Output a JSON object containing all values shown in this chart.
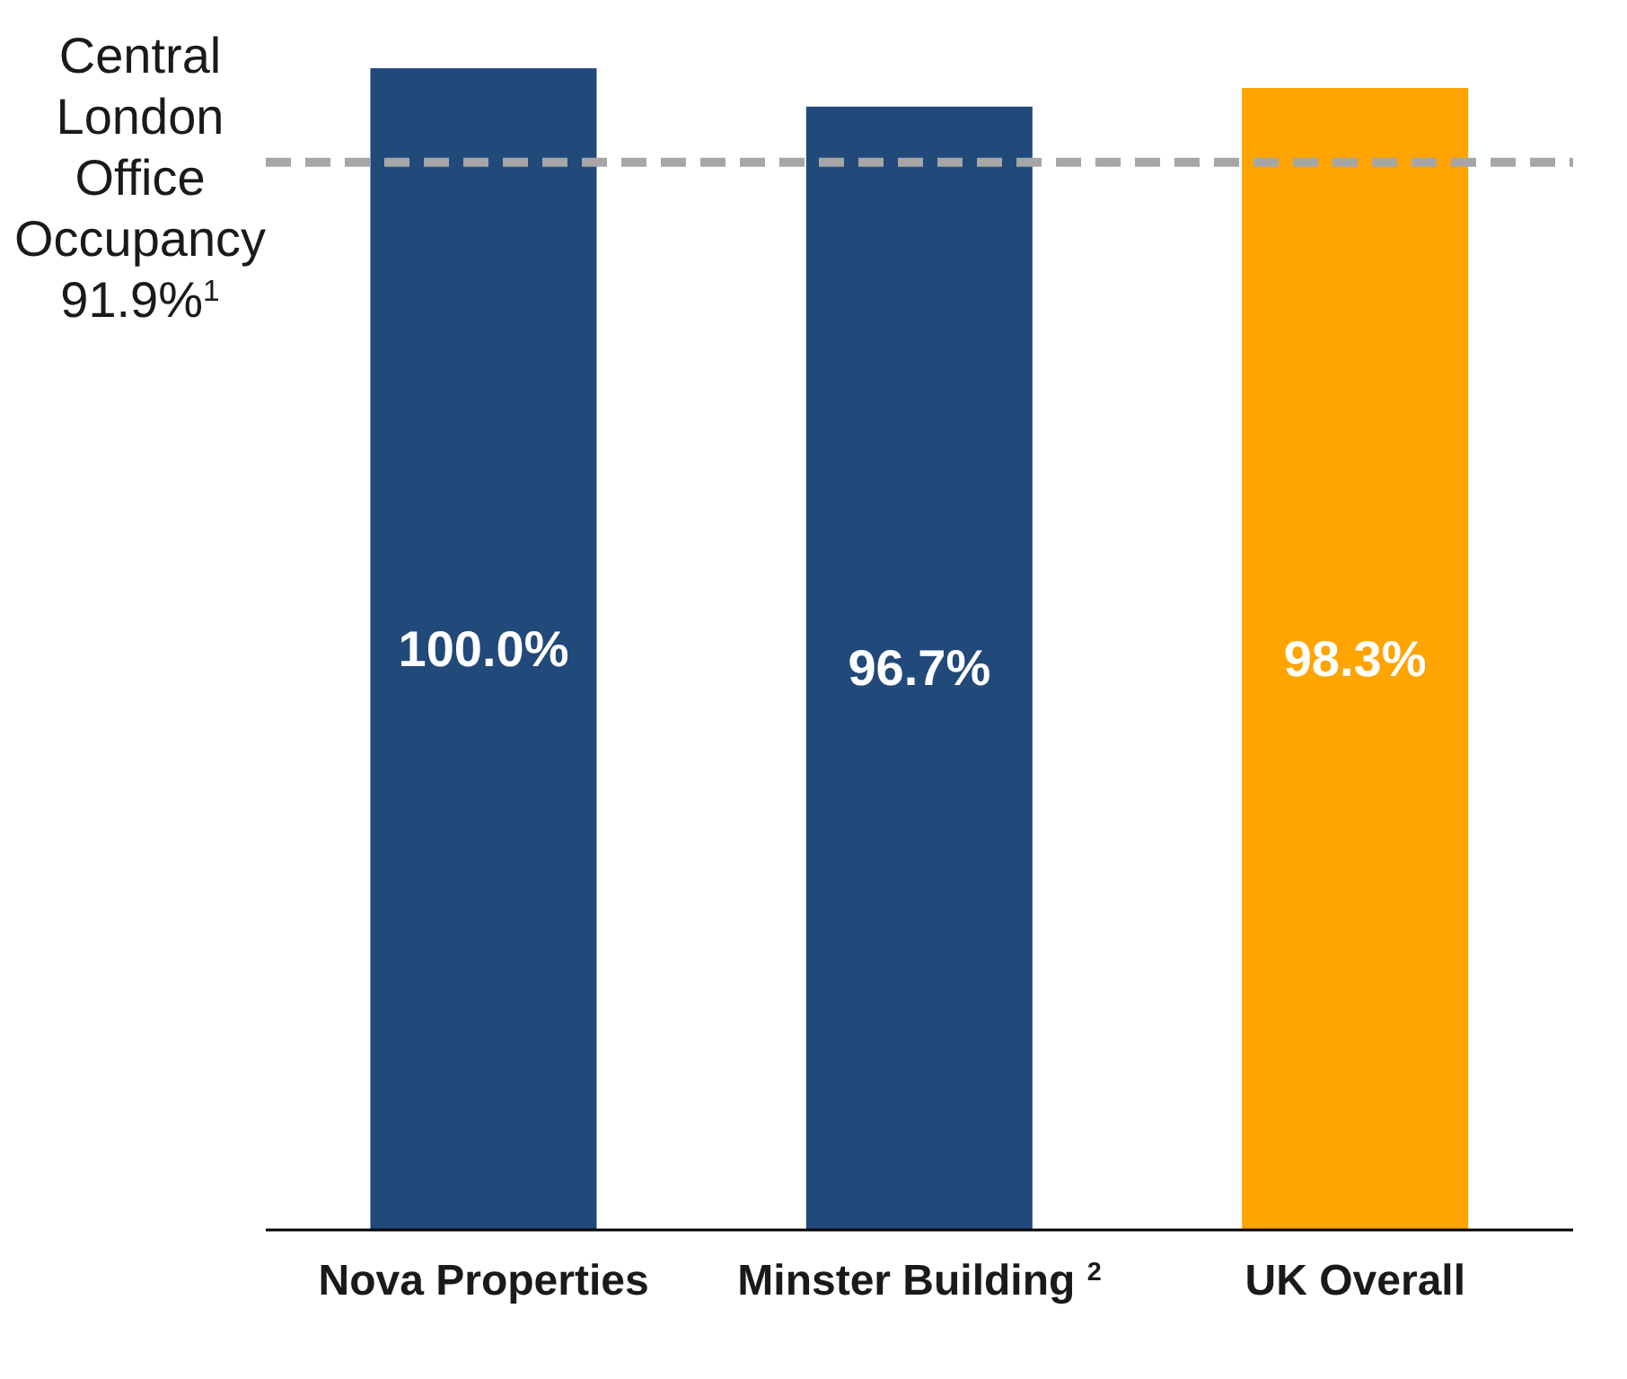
{
  "chart_data": {
    "type": "bar",
    "categories": [
      "Nova Properties",
      "Minster Building $^{2}$",
      "UK Overall"
    ],
    "values": [
      100,
      96.7,
      98.3
    ],
    "colors": [
      "#21497a",
      "#21497a",
      "#ffa400"
    ],
    "value_labels": [
      "100.0%",
      "96.7%",
      "98.3%"
    ],
    "ylim": [
      0,
      100
    ],
    "ref_lines": [
      {
        "axis": "y",
        "value": 91.9,
        "label": "Central London Office Occupancy 91.9%$^{1}$",
        "color": "#a6a6a6",
        "line_style": "dashed"
      }
    ],
    "grid": false,
    "legend": false
  }
}
